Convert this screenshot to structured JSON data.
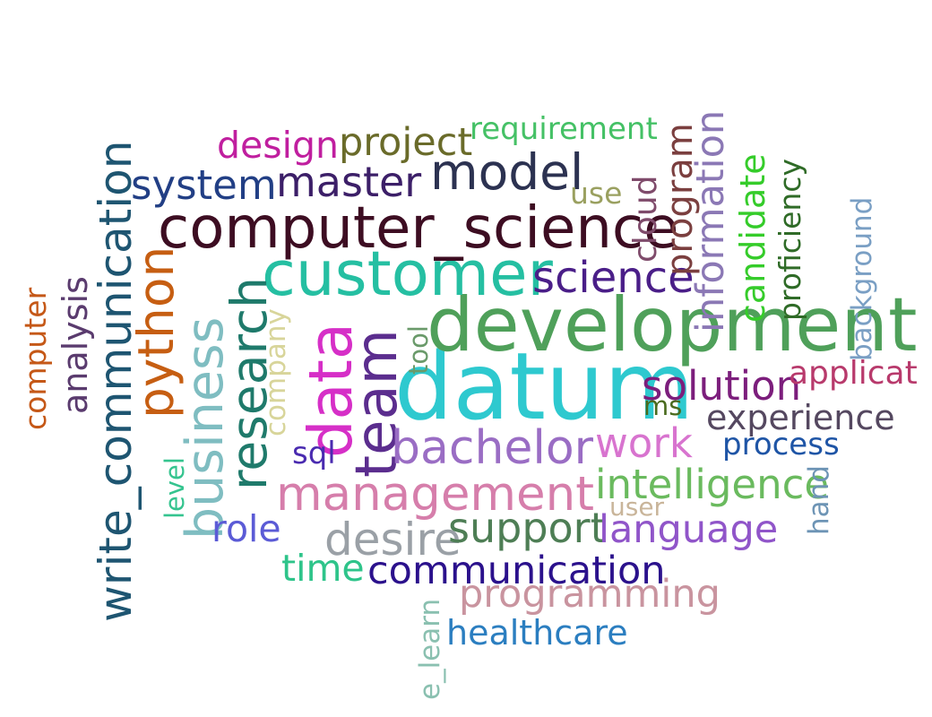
{
  "words": [
    {
      "text": "datum",
      "color": "#2ec9cf",
      "vertical": false
    },
    {
      "text": "development",
      "color": "#4fa05a",
      "vertical": false
    },
    {
      "text": "team",
      "color": "#5b2d8e",
      "vertical": true
    },
    {
      "text": "data",
      "color": "#d62fc7",
      "vertical": true
    },
    {
      "text": "customer",
      "color": "#25bfa2",
      "vertical": false
    },
    {
      "text": "computer_science",
      "color": "#3d0d22",
      "vertical": false
    },
    {
      "text": "research",
      "color": "#1f7a6b",
      "vertical": true
    },
    {
      "text": "business",
      "color": "#7fbdc1",
      "vertical": true
    },
    {
      "text": "write_communication",
      "color": "#1e5571",
      "vertical": true
    },
    {
      "text": "python",
      "color": "#c65e12",
      "vertical": true
    },
    {
      "text": "management",
      "color": "#d67eab",
      "vertical": false
    },
    {
      "text": "bachelor",
      "color": "#9a6dc4",
      "vertical": false
    },
    {
      "text": "model",
      "color": "#2c3251",
      "vertical": false
    },
    {
      "text": "master",
      "color": "#3c1f68",
      "vertical": false
    },
    {
      "text": "science",
      "color": "#4a1e88",
      "vertical": false
    },
    {
      "text": "work",
      "color": "#d874cf",
      "vertical": false
    },
    {
      "text": "system",
      "color": "#223f85",
      "vertical": false
    },
    {
      "text": "project",
      "color": "#6a6b2a",
      "vertical": false
    },
    {
      "text": "information",
      "color": "#8b78b5",
      "vertical": true
    },
    {
      "text": "program",
      "color": "#7b3f3f",
      "vertical": true
    },
    {
      "text": "cloud",
      "color": "#7f4b6b",
      "vertical": true
    },
    {
      "text": "candidate",
      "color": "#35cc2a",
      "vertical": true
    },
    {
      "text": "proficiency",
      "color": "#2f6b27",
      "vertical": true
    },
    {
      "text": "analysis",
      "color": "#5a3b6e",
      "vertical": true
    },
    {
      "text": "computer",
      "color": "#c55817",
      "vertical": true
    },
    {
      "text": "solution",
      "color": "#7c1e7c",
      "vertical": false
    },
    {
      "text": "intelligence",
      "color": "#6aba5e",
      "vertical": false
    },
    {
      "text": "desire",
      "color": "#9aa0a6",
      "vertical": false
    },
    {
      "text": "support",
      "color": "#4e7e55",
      "vertical": false
    },
    {
      "text": "language",
      "color": "#9055c9",
      "vertical": false
    },
    {
      "text": "programming",
      "color": "#c9949f",
      "vertical": false
    },
    {
      "text": "communication",
      "color": "#2b118c",
      "vertical": false
    },
    {
      "text": "design",
      "color": "#c01f9f",
      "vertical": false
    },
    {
      "text": "requirement",
      "color": "#45c166",
      "vertical": false
    },
    {
      "text": "experience",
      "color": "#554860",
      "vertical": false
    },
    {
      "text": "process",
      "color": "#1f55a6",
      "vertical": false
    },
    {
      "text": "applicat",
      "color": "#b83a6c",
      "vertical": false
    },
    {
      "text": "background",
      "color": "#7a9fc4",
      "vertical": true
    },
    {
      "text": "hand",
      "color": "#6d94b5",
      "vertical": true
    },
    {
      "text": "role",
      "color": "#5b5bd6",
      "vertical": false
    },
    {
      "text": "time",
      "color": "#2ec48a",
      "vertical": false
    },
    {
      "text": "level",
      "color": "#35c48f",
      "vertical": true
    },
    {
      "text": "company",
      "color": "#d8d59a",
      "vertical": true
    },
    {
      "text": "tool",
      "color": "#6a9a6a",
      "vertical": true
    },
    {
      "text": "sql",
      "color": "#4a2bb0",
      "vertical": false
    },
    {
      "text": "use",
      "color": "#9aa060",
      "vertical": false
    },
    {
      "text": "ms",
      "color": "#4a6b1e",
      "vertical": false
    },
    {
      "text": "user",
      "color": "#c9b59a",
      "vertical": false
    },
    {
      "text": "healthcare",
      "color": "#2b7ec0",
      "vertical": false
    },
    {
      "text": "e_learn",
      "color": "#8ac0b0",
      "vertical": true
    }
  ]
}
